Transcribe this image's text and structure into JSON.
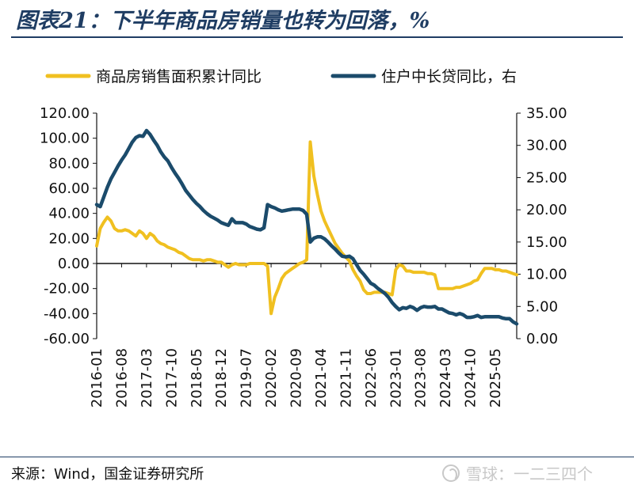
{
  "figure": {
    "title": "图表21：下半年商品房销量也转为回落，%",
    "source": "来源：Wind，国金证券研究所",
    "watermark": "雪球：一二三四个"
  },
  "chart_data": {
    "type": "line",
    "x_tick_labels": [
      "2016-01",
      "2016-08",
      "2017-03",
      "2017-10",
      "2018-05",
      "2018-12",
      "2019-07",
      "2020-02",
      "2020-09",
      "2021-04",
      "2021-11",
      "2022-06",
      "2023-01",
      "2023-08",
      "2024-03",
      "2024-10",
      "2025-05"
    ],
    "x_range": [
      "2016-01",
      "2025-11"
    ],
    "y_left": {
      "range": [
        -60,
        120
      ],
      "ticks": [
        "120.00",
        "100.00",
        "80.00",
        "60.00",
        "40.00",
        "20.00",
        "0.00",
        "-20.00",
        "-40.00",
        "-60.00"
      ]
    },
    "y_right": {
      "range": [
        0,
        35
      ],
      "ticks": [
        "35.00",
        "30.00",
        "25.00",
        "20.00",
        "15.00",
        "10.00",
        "5.00",
        "0.00"
      ]
    },
    "legend_placement": "top",
    "grid": false,
    "series": [
      {
        "name": "商品房销售面积累计同比",
        "axis": "left",
        "color": "#f0c020",
        "points": [
          [
            "2016-01",
            14
          ],
          [
            "2016-02",
            28
          ],
          [
            "2016-03",
            33
          ],
          [
            "2016-04",
            37
          ],
          [
            "2016-05",
            34
          ],
          [
            "2016-06",
            28
          ],
          [
            "2016-07",
            26
          ],
          [
            "2016-08",
            26
          ],
          [
            "2016-09",
            27
          ],
          [
            "2016-10",
            26
          ],
          [
            "2016-11",
            24
          ],
          [
            "2016-12",
            22
          ],
          [
            "2017-01",
            26
          ],
          [
            "2017-02",
            24
          ],
          [
            "2017-03",
            20
          ],
          [
            "2017-04",
            24
          ],
          [
            "2017-05",
            22
          ],
          [
            "2017-06",
            18
          ],
          [
            "2017-07",
            16
          ],
          [
            "2017-08",
            15
          ],
          [
            "2017-09",
            13
          ],
          [
            "2017-10",
            12
          ],
          [
            "2017-11",
            11
          ],
          [
            "2017-12",
            9
          ],
          [
            "2018-01",
            8
          ],
          [
            "2018-02",
            6
          ],
          [
            "2018-03",
            4
          ],
          [
            "2018-04",
            3
          ],
          [
            "2018-05",
            3
          ],
          [
            "2018-06",
            3
          ],
          [
            "2018-07",
            2
          ],
          [
            "2018-08",
            3
          ],
          [
            "2018-09",
            3
          ],
          [
            "2018-10",
            2
          ],
          [
            "2018-11",
            1
          ],
          [
            "2018-12",
            1
          ],
          [
            "2019-01",
            -1
          ],
          [
            "2019-02",
            -3
          ],
          [
            "2019-03",
            -1
          ],
          [
            "2019-04",
            0
          ],
          [
            "2019-05",
            -1
          ],
          [
            "2019-06",
            -1
          ],
          [
            "2019-07",
            -1
          ],
          [
            "2019-08",
            0
          ],
          [
            "2019-09",
            0
          ],
          [
            "2019-10",
            0
          ],
          [
            "2019-11",
            0
          ],
          [
            "2019-12",
            0
          ],
          [
            "2020-01",
            -2
          ],
          [
            "2020-02",
            -40
          ],
          [
            "2020-03",
            -27
          ],
          [
            "2020-04",
            -20
          ],
          [
            "2020-05",
            -12
          ],
          [
            "2020-06",
            -8
          ],
          [
            "2020-07",
            -6
          ],
          [
            "2020-08",
            -4
          ],
          [
            "2020-09",
            -2
          ],
          [
            "2020-10",
            0
          ],
          [
            "2020-11",
            1
          ],
          [
            "2020-12",
            3
          ],
          [
            "2021-01",
            97
          ],
          [
            "2021-02",
            70
          ],
          [
            "2021-03",
            55
          ],
          [
            "2021-04",
            42
          ],
          [
            "2021-05",
            34
          ],
          [
            "2021-06",
            28
          ],
          [
            "2021-07",
            22
          ],
          [
            "2021-08",
            16
          ],
          [
            "2021-09",
            12
          ],
          [
            "2021-10",
            8
          ],
          [
            "2021-11",
            5
          ],
          [
            "2021-12",
            2
          ],
          [
            "2022-01",
            -5
          ],
          [
            "2022-02",
            -10
          ],
          [
            "2022-03",
            -14
          ],
          [
            "2022-04",
            -21
          ],
          [
            "2022-05",
            -24
          ],
          [
            "2022-06",
            -24
          ],
          [
            "2022-07",
            -23
          ],
          [
            "2022-08",
            -23
          ],
          [
            "2022-09",
            -23
          ],
          [
            "2022-10",
            -23
          ],
          [
            "2022-11",
            -24
          ],
          [
            "2022-12",
            -25
          ],
          [
            "2023-01",
            -5
          ],
          [
            "2023-02",
            -1
          ],
          [
            "2023-03",
            -2
          ],
          [
            "2023-04",
            -6
          ],
          [
            "2023-05",
            -6
          ],
          [
            "2023-06",
            -7
          ],
          [
            "2023-07",
            -7
          ],
          [
            "2023-08",
            -7
          ],
          [
            "2023-09",
            -7
          ],
          [
            "2023-10",
            -8
          ],
          [
            "2023-11",
            -8
          ],
          [
            "2023-12",
            -9
          ],
          [
            "2024-01",
            -20
          ],
          [
            "2024-02",
            -20
          ],
          [
            "2024-03",
            -20
          ],
          [
            "2024-04",
            -20
          ],
          [
            "2024-05",
            -20
          ],
          [
            "2024-06",
            -19
          ],
          [
            "2024-07",
            -19
          ],
          [
            "2024-08",
            -18
          ],
          [
            "2024-09",
            -17
          ],
          [
            "2024-10",
            -16
          ],
          [
            "2024-11",
            -14
          ],
          [
            "2024-12",
            -13
          ],
          [
            "2025-01",
            -8
          ],
          [
            "2025-02",
            -4
          ],
          [
            "2025-03",
            -4
          ],
          [
            "2025-04",
            -4
          ],
          [
            "2025-05",
            -5
          ],
          [
            "2025-06",
            -5
          ],
          [
            "2025-07",
            -6
          ],
          [
            "2025-08",
            -6
          ],
          [
            "2025-09",
            -7
          ],
          [
            "2025-10",
            -8
          ],
          [
            "2025-11",
            -9
          ]
        ]
      },
      {
        "name": "住户中长贷同比，右",
        "axis": "right",
        "color": "#1b4b6b",
        "points": [
          [
            "2016-01",
            20.8
          ],
          [
            "2016-02",
            20.5
          ],
          [
            "2016-03",
            22.0
          ],
          [
            "2016-04",
            23.5
          ],
          [
            "2016-05",
            24.8
          ],
          [
            "2016-06",
            25.8
          ],
          [
            "2016-07",
            26.8
          ],
          [
            "2016-08",
            27.7
          ],
          [
            "2016-09",
            28.5
          ],
          [
            "2016-10",
            29.5
          ],
          [
            "2016-11",
            30.5
          ],
          [
            "2016-12",
            31.2
          ],
          [
            "2017-01",
            31.5
          ],
          [
            "2017-02",
            31.4
          ],
          [
            "2017-03",
            32.3
          ],
          [
            "2017-04",
            31.7
          ],
          [
            "2017-05",
            30.8
          ],
          [
            "2017-06",
            30.0
          ],
          [
            "2017-07",
            29.0
          ],
          [
            "2017-08",
            28.2
          ],
          [
            "2017-09",
            27.6
          ],
          [
            "2017-10",
            26.6
          ],
          [
            "2017-11",
            25.7
          ],
          [
            "2017-12",
            24.9
          ],
          [
            "2018-01",
            24.0
          ],
          [
            "2018-02",
            23.0
          ],
          [
            "2018-03",
            22.3
          ],
          [
            "2018-04",
            21.6
          ],
          [
            "2018-05",
            21.0
          ],
          [
            "2018-06",
            20.5
          ],
          [
            "2018-07",
            19.9
          ],
          [
            "2018-08",
            19.4
          ],
          [
            "2018-09",
            19.0
          ],
          [
            "2018-10",
            18.7
          ],
          [
            "2018-11",
            18.4
          ],
          [
            "2018-12",
            18.0
          ],
          [
            "2019-01",
            17.8
          ],
          [
            "2019-02",
            17.6
          ],
          [
            "2019-03",
            18.6
          ],
          [
            "2019-04",
            18.0
          ],
          [
            "2019-05",
            18.0
          ],
          [
            "2019-06",
            18.0
          ],
          [
            "2019-07",
            17.8
          ],
          [
            "2019-08",
            17.4
          ],
          [
            "2019-09",
            17.2
          ],
          [
            "2019-10",
            17.0
          ],
          [
            "2019-11",
            16.9
          ],
          [
            "2019-12",
            17.2
          ],
          [
            "2020-01",
            20.8
          ],
          [
            "2020-02",
            20.5
          ],
          [
            "2020-03",
            20.3
          ],
          [
            "2020-04",
            20.0
          ],
          [
            "2020-05",
            19.8
          ],
          [
            "2020-06",
            19.9
          ],
          [
            "2020-07",
            20.0
          ],
          [
            "2020-08",
            20.1
          ],
          [
            "2020-09",
            20.1
          ],
          [
            "2020-10",
            20.1
          ],
          [
            "2020-11",
            19.9
          ],
          [
            "2020-12",
            19.3
          ],
          [
            "2021-01",
            15.0
          ],
          [
            "2021-02",
            15.6
          ],
          [
            "2021-03",
            15.8
          ],
          [
            "2021-04",
            15.8
          ],
          [
            "2021-05",
            15.5
          ],
          [
            "2021-06",
            15.0
          ],
          [
            "2021-07",
            14.4
          ],
          [
            "2021-08",
            13.9
          ],
          [
            "2021-09",
            13.3
          ],
          [
            "2021-10",
            12.8
          ],
          [
            "2021-11",
            12.7
          ],
          [
            "2021-12",
            12.8
          ],
          [
            "2022-01",
            12.4
          ],
          [
            "2022-02",
            11.5
          ],
          [
            "2022-03",
            10.6
          ],
          [
            "2022-04",
            10.0
          ],
          [
            "2022-05",
            9.3
          ],
          [
            "2022-06",
            8.6
          ],
          [
            "2022-07",
            8.3
          ],
          [
            "2022-08",
            7.8
          ],
          [
            "2022-09",
            7.4
          ],
          [
            "2022-10",
            7.0
          ],
          [
            "2022-11",
            6.4
          ],
          [
            "2022-12",
            5.6
          ],
          [
            "2023-01",
            5.0
          ],
          [
            "2023-02",
            4.5
          ],
          [
            "2023-03",
            4.8
          ],
          [
            "2023-04",
            4.7
          ],
          [
            "2023-05",
            5.0
          ],
          [
            "2023-06",
            4.8
          ],
          [
            "2023-07",
            4.4
          ],
          [
            "2023-08",
            4.8
          ],
          [
            "2023-09",
            5.0
          ],
          [
            "2023-10",
            4.9
          ],
          [
            "2023-11",
            4.9
          ],
          [
            "2023-12",
            5.0
          ],
          [
            "2024-01",
            4.6
          ],
          [
            "2024-02",
            4.6
          ],
          [
            "2024-03",
            4.3
          ],
          [
            "2024-04",
            4.0
          ],
          [
            "2024-05",
            3.9
          ],
          [
            "2024-06",
            3.7
          ],
          [
            "2024-07",
            3.9
          ],
          [
            "2024-08",
            3.7
          ],
          [
            "2024-09",
            3.3
          ],
          [
            "2024-10",
            3.3
          ],
          [
            "2024-11",
            3.4
          ],
          [
            "2024-12",
            3.6
          ],
          [
            "2025-01",
            3.3
          ],
          [
            "2025-02",
            3.4
          ],
          [
            "2025-03",
            3.4
          ],
          [
            "2025-04",
            3.4
          ],
          [
            "2025-05",
            3.4
          ],
          [
            "2025-06",
            3.4
          ],
          [
            "2025-07",
            3.2
          ],
          [
            "2025-08",
            3.1
          ],
          [
            "2025-09",
            3.1
          ],
          [
            "2025-10",
            2.6
          ],
          [
            "2025-11",
            2.3
          ]
        ]
      }
    ]
  }
}
